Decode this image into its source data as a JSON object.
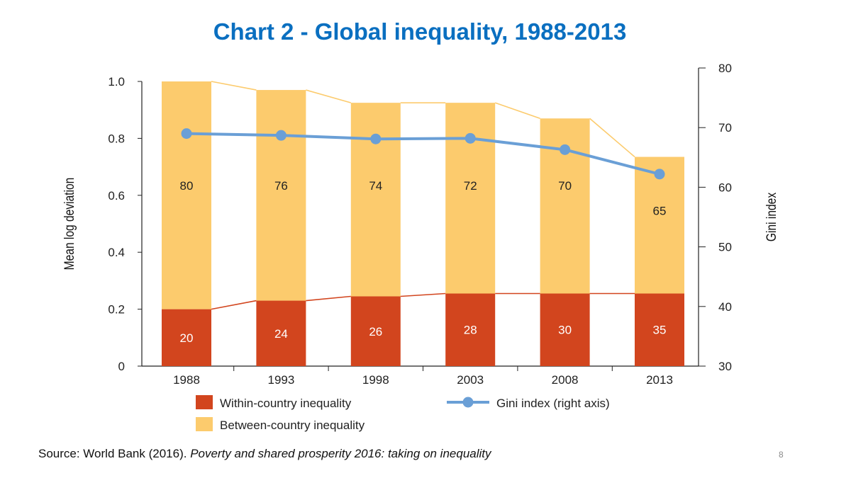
{
  "slide": {
    "title": "Chart 2 - Global inequality, 1988-2013",
    "source_prefix": "Source: World Bank (2016). ",
    "source_title": "Poverty and shared prosperity 2016: taking on inequality",
    "page_number": "8"
  },
  "colors": {
    "title": "#0a6fc0",
    "within": "#d2451e",
    "between": "#fccb6d",
    "gini": "#6a9fd6"
  },
  "chart_data": {
    "type": "bar",
    "stacked": true,
    "categories": [
      "1988",
      "1993",
      "1998",
      "2003",
      "2008",
      "2013"
    ],
    "series": [
      {
        "name": "Within-country inequality",
        "values": [
          0.2,
          0.23,
          0.245,
          0.255,
          0.255,
          0.255
        ],
        "labels": [
          "20",
          "24",
          "26",
          "28",
          "30",
          "35"
        ],
        "axis": "left"
      },
      {
        "name": "Between-country inequality",
        "values": [
          0.8,
          0.74,
          0.68,
          0.67,
          0.615,
          0.48
        ],
        "labels": [
          "80",
          "76",
          "74",
          "72",
          "70",
          "65"
        ],
        "axis": "left"
      },
      {
        "name": "Gini index (right axis)",
        "type": "line",
        "values": [
          69,
          68.7,
          68.1,
          68.2,
          66.3,
          62.2
        ],
        "axis": "right"
      }
    ],
    "ylabel": "Mean log deviation",
    "ylim": [
      0,
      1.0
    ],
    "yticks": [
      "0",
      "0.2",
      "0.4",
      "0.6",
      "0.8",
      "1.0"
    ],
    "y2label": "Gini index",
    "y2lim": [
      30,
      80
    ],
    "y2ticks": [
      "30",
      "40",
      "50",
      "60",
      "70",
      "80"
    ],
    "legend": [
      "Within-country inequality",
      "Gini index (right axis)",
      "Between-country inequality"
    ]
  }
}
